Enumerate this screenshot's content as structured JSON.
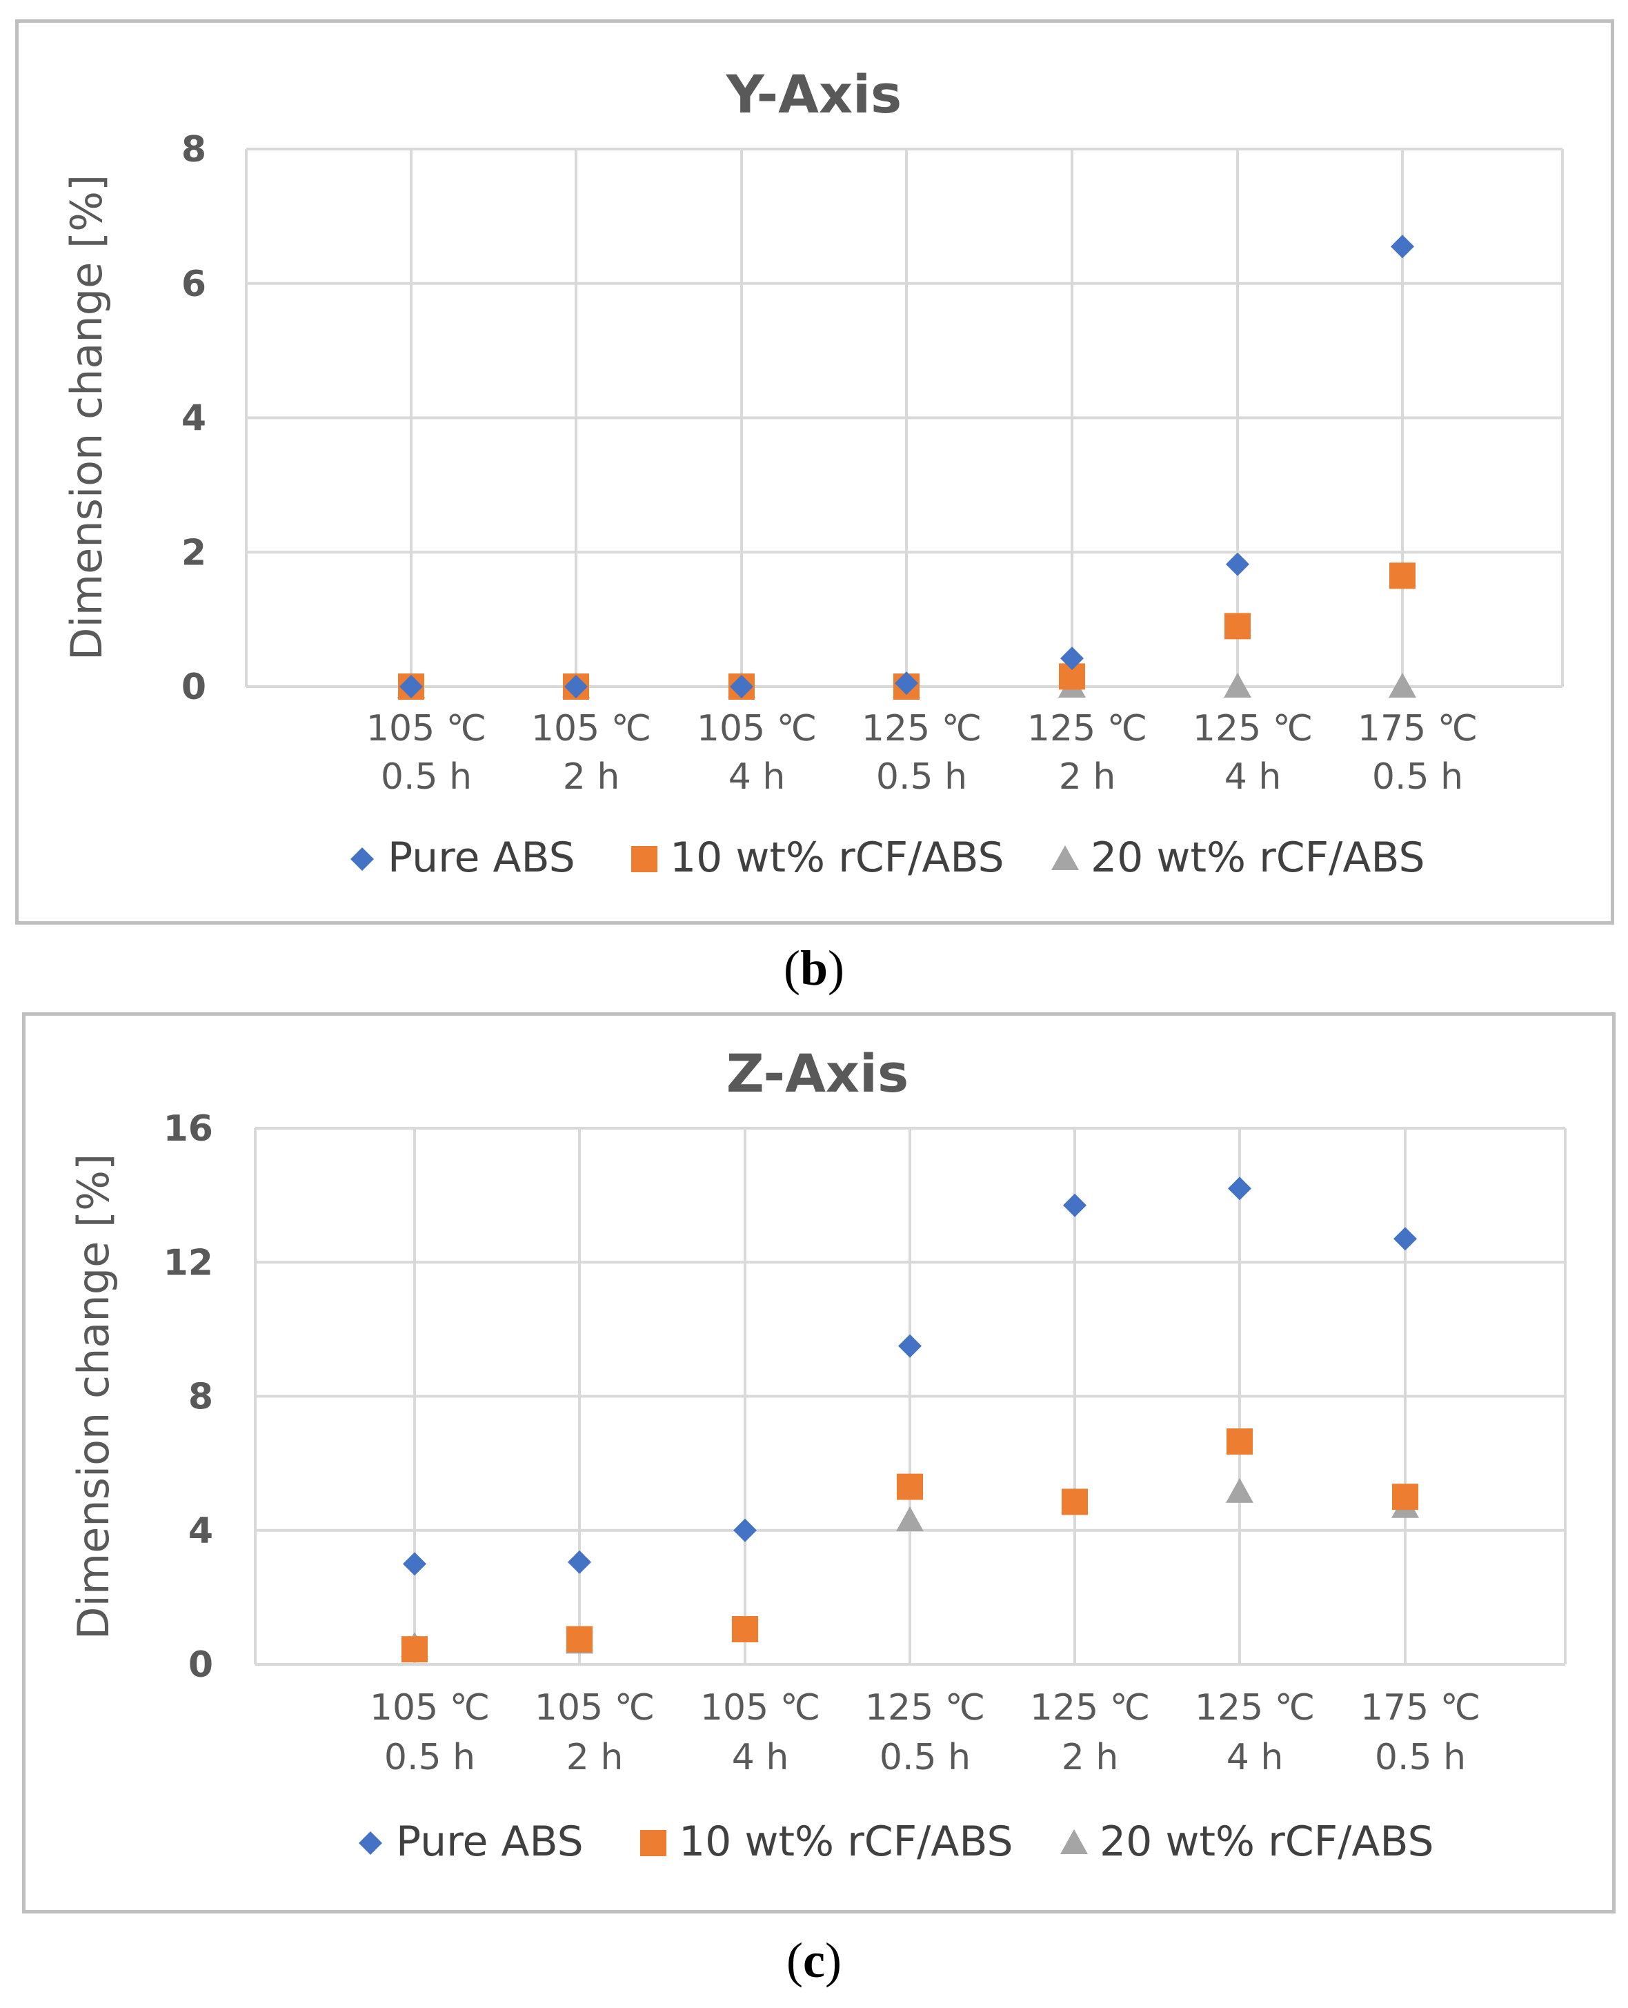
{
  "chart_data": [
    {
      "type": "scatter",
      "panel": "b",
      "title": "Y-Axis",
      "ylabel": "Dimension change [%]",
      "xlabel": "",
      "ylim": [
        0,
        8
      ],
      "yticks": [
        "0",
        "2",
        "4",
        "6",
        "8"
      ],
      "grid": true,
      "legend_position": "bottom",
      "categories": [
        [
          "105 ℃",
          "0.5 h"
        ],
        [
          "105 ℃",
          "2 h"
        ],
        [
          "105 ℃",
          "4 h"
        ],
        [
          "125 ℃",
          "0.5 h"
        ],
        [
          "125 ℃",
          "2 h"
        ],
        [
          "125 ℃",
          "4 h"
        ],
        [
          "175 ℃",
          "0.5 h"
        ]
      ],
      "series": [
        {
          "name": "Pure ABS",
          "marker": "diamond",
          "color": "#4472C4",
          "values": [
            0,
            0,
            0,
            0.05,
            0.42,
            1.82,
            6.55
          ]
        },
        {
          "name": "10 wt% rCF/ABS",
          "marker": "square",
          "color": "#ED7D31",
          "values": [
            0,
            0,
            0,
            0,
            0.15,
            0.9,
            1.65
          ]
        },
        {
          "name": "20 wt% rCF/ABS",
          "marker": "triangle",
          "color": "#A5A5A5",
          "values": [
            0,
            0,
            0,
            0,
            0,
            0,
            0
          ]
        }
      ],
      "caption": "b"
    },
    {
      "type": "scatter",
      "panel": "c",
      "title": "Z-Axis",
      "ylabel": "Dimension change [%]",
      "xlabel": "",
      "ylim": [
        0,
        16
      ],
      "yticks": [
        "0",
        "4",
        "8",
        "12",
        "16"
      ],
      "grid": true,
      "legend_position": "bottom",
      "categories": [
        [
          "105 ℃",
          "0.5 h"
        ],
        [
          "105 ℃",
          "2 h"
        ],
        [
          "105 ℃",
          "4 h"
        ],
        [
          "125 ℃",
          "0.5 h"
        ],
        [
          "125 ℃",
          "2 h"
        ],
        [
          "125 ℃",
          "4 h"
        ],
        [
          "175 ℃",
          "0.5 h"
        ]
      ],
      "series": [
        {
          "name": "Pure ABS",
          "marker": "diamond",
          "color": "#4472C4",
          "values": [
            3.0,
            3.05,
            4.0,
            9.5,
            13.7,
            14.2,
            12.7
          ]
        },
        {
          "name": "10 wt% rCF/ABS",
          "marker": "square",
          "color": "#ED7D31",
          "values": [
            0.45,
            0.75,
            1.05,
            5.3,
            4.85,
            6.65,
            5.0
          ]
        },
        {
          "name": "20 wt% rCF/ABS",
          "marker": "triangle",
          "color": "#A5A5A5",
          "values": [
            0.55,
            0.65,
            1.0,
            4.3,
            4.85,
            5.15,
            4.7
          ]
        }
      ],
      "caption": "c"
    }
  ]
}
